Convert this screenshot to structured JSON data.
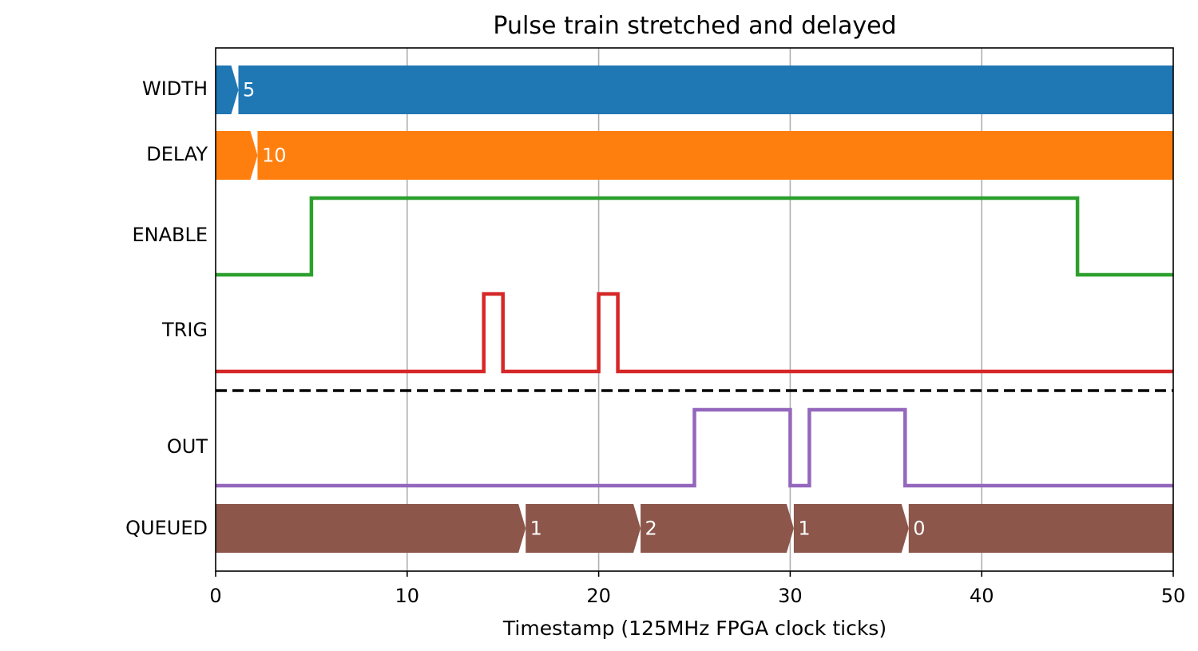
{
  "chart_data": {
    "type": "timing",
    "title": "Pulse train stretched and delayed",
    "xlabel": "Timestamp (125MHz FPGA clock ticks)",
    "xlim": [
      0,
      50
    ],
    "xticks": [
      0,
      10,
      20,
      30,
      40,
      50
    ],
    "grid": "vertical",
    "separator_after": "TRIG",
    "signals": [
      {
        "name": "WIDTH",
        "kind": "bus",
        "color": "#1f77b4",
        "segments": [
          {
            "start": 0,
            "end": 1,
            "label": ""
          },
          {
            "start": 1,
            "end": 50,
            "label": "5"
          }
        ]
      },
      {
        "name": "DELAY",
        "kind": "bus",
        "color": "#ff7f0e",
        "segments": [
          {
            "start": 0,
            "end": 2,
            "label": ""
          },
          {
            "start": 2,
            "end": 50,
            "label": "10"
          }
        ]
      },
      {
        "name": "ENABLE",
        "kind": "wave",
        "color": "#2ca02c",
        "points": [
          [
            0,
            0
          ],
          [
            5,
            0
          ],
          [
            5,
            1
          ],
          [
            45,
            1
          ],
          [
            45,
            0
          ],
          [
            50,
            0
          ]
        ]
      },
      {
        "name": "TRIG",
        "kind": "wave",
        "color": "#d62728",
        "points": [
          [
            0,
            0
          ],
          [
            14,
            0
          ],
          [
            14,
            1
          ],
          [
            15,
            1
          ],
          [
            15,
            0
          ],
          [
            20,
            0
          ],
          [
            20,
            1
          ],
          [
            21,
            1
          ],
          [
            21,
            0
          ],
          [
            50,
            0
          ]
        ]
      },
      {
        "name": "OUT",
        "kind": "wave",
        "color": "#9467bd",
        "points": [
          [
            0,
            0
          ],
          [
            25,
            0
          ],
          [
            25,
            1
          ],
          [
            30,
            1
          ],
          [
            30,
            0
          ],
          [
            31,
            0
          ],
          [
            31,
            1
          ],
          [
            36,
            1
          ],
          [
            36,
            0
          ],
          [
            50,
            0
          ]
        ]
      },
      {
        "name": "QUEUED",
        "kind": "bus",
        "color": "#8c564b",
        "segments": [
          {
            "start": 0,
            "end": 16,
            "label": ""
          },
          {
            "start": 16,
            "end": 22,
            "label": "1"
          },
          {
            "start": 22,
            "end": 30,
            "label": "2"
          },
          {
            "start": 30,
            "end": 36,
            "label": "1"
          },
          {
            "start": 36,
            "end": 50,
            "label": "0"
          }
        ]
      }
    ]
  }
}
